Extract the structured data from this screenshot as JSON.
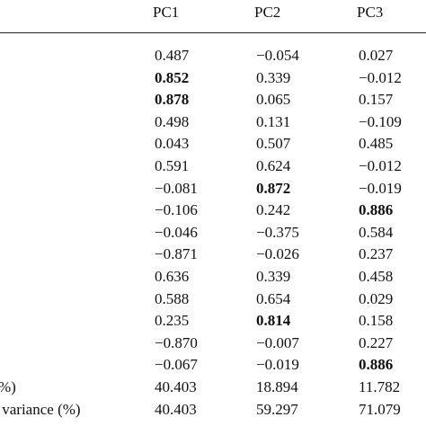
{
  "table": {
    "header": [
      "PC1",
      "PC2",
      "PC3"
    ],
    "rows": [
      {
        "values": [
          "0.487",
          "−0.054",
          "0.027"
        ]
      },
      {
        "values": [
          "0.852",
          "0.339",
          "−0.012"
        ]
      },
      {
        "values": [
          "0.878",
          "0.065",
          "0.157"
        ]
      },
      {
        "values": [
          "0.498",
          "0.131",
          "−0.109"
        ]
      },
      {
        "values": [
          "0.043",
          "0.507",
          "0.485"
        ]
      },
      {
        "values": [
          "0.591",
          "0.624",
          "−0.012"
        ]
      },
      {
        "values": [
          "−0.081",
          "0.872",
          "−0.019"
        ]
      },
      {
        "values": [
          "−0.106",
          "0.242",
          "0.886"
        ]
      },
      {
        "values": [
          "−0.046",
          "−0.375",
          "0.584"
        ]
      },
      {
        "values": [
          "−0.871",
          "−0.026",
          "0.237"
        ]
      },
      {
        "values": [
          "0.636",
          "0.339",
          "0.458"
        ]
      },
      {
        "values": [
          "0.588",
          "0.654",
          "0.029"
        ]
      },
      {
        "values": [
          "0.235",
          "0.814",
          "0.158"
        ]
      },
      {
        "values": [
          "−0.870",
          "−0.007",
          "0.227"
        ]
      },
      {
        "values": [
          "−0.067",
          "−0.019",
          "0.886"
        ]
      },
      {
        "label": "%)",
        "values": [
          "40.403",
          "18.894",
          "11.782"
        ]
      },
      {
        "label": " variance (%)",
        "values": [
          "40.403",
          "59.297",
          "71.079"
        ]
      }
    ]
  }
}
